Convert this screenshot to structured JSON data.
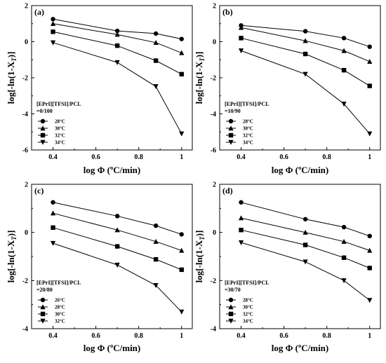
{
  "chart_data": [
    {
      "type": "line",
      "panel_label": "(a)",
      "xlabel": "log Φ (ºC/min)",
      "ylabel": "log[-ln(1-X_T)]",
      "xlim": [
        0.3,
        1.05
      ],
      "ylim": [
        -6,
        2
      ],
      "x_ticks": [
        0.4,
        0.6,
        0.8,
        1.0
      ],
      "x_tick_labels": [
        "0.4",
        "0.6",
        "0.8",
        "1"
      ],
      "y_ticks": [
        -6,
        -4,
        -2,
        0,
        2
      ],
      "y_tick_labels": [
        "-6",
        "-4",
        "-2",
        "0",
        "2"
      ],
      "legend_title_lines": [
        "[EPrI][TFSI]/PCL",
        "=0/100"
      ],
      "legend_placement": "lower-left",
      "series": [
        {
          "name": "28°C",
          "marker": "circle",
          "x": [
            0.4,
            0.7,
            0.88,
            1.0
          ],
          "y": [
            1.25,
            0.6,
            0.45,
            0.15
          ]
        },
        {
          "name": "30°C",
          "marker": "triangle-up",
          "x": [
            0.4,
            0.7,
            0.88,
            1.0
          ],
          "y": [
            1.0,
            0.4,
            -0.05,
            -0.62
          ]
        },
        {
          "name": "32°C",
          "marker": "square",
          "x": [
            0.4,
            0.7,
            0.88,
            1.0
          ],
          "y": [
            0.55,
            -0.22,
            -1.05,
            -1.8
          ]
        },
        {
          "name": "34°C",
          "marker": "triangle-down",
          "x": [
            0.4,
            0.7,
            0.88,
            1.0
          ],
          "y": [
            -0.05,
            -1.15,
            -2.48,
            -5.1
          ]
        }
      ]
    },
    {
      "type": "line",
      "panel_label": "(b)",
      "xlabel": "log Φ (ºC/min)",
      "ylabel": "log[-ln(1-X_T)]",
      "xlim": [
        0.3,
        1.05
      ],
      "ylim": [
        -6,
        2
      ],
      "x_ticks": [
        0.4,
        0.6,
        0.8,
        1.0
      ],
      "x_tick_labels": [
        "0.4",
        "0.6",
        "0.8",
        "1"
      ],
      "y_ticks": [
        -6,
        -4,
        -2,
        0,
        2
      ],
      "y_tick_labels": [
        "-6",
        "-4",
        "-2",
        "0",
        "2"
      ],
      "legend_title_lines": [
        "[EPrI][TFSI]/PCL",
        "=10/90"
      ],
      "legend_placement": "lower-left",
      "series": [
        {
          "name": "28°C",
          "marker": "circle",
          "x": [
            0.4,
            0.7,
            0.88,
            1.0
          ],
          "y": [
            0.9,
            0.58,
            0.2,
            -0.28
          ]
        },
        {
          "name": "30°C",
          "marker": "triangle-up",
          "x": [
            0.4,
            0.7,
            0.88,
            1.0
          ],
          "y": [
            0.78,
            0.05,
            -0.5,
            -1.1
          ]
        },
        {
          "name": "32°C",
          "marker": "square",
          "x": [
            0.4,
            0.7,
            0.88,
            1.0
          ],
          "y": [
            0.2,
            -0.68,
            -1.58,
            -2.45
          ]
        },
        {
          "name": "34°C",
          "marker": "triangle-down",
          "x": [
            0.4,
            0.7,
            0.88,
            1.0
          ],
          "y": [
            -0.5,
            -1.8,
            -3.45,
            -5.1
          ]
        }
      ]
    },
    {
      "type": "line",
      "panel_label": "(c)",
      "xlabel": "log Φ (ºC/min)",
      "ylabel": "log[-ln(1-X_T)]",
      "xlim": [
        0.3,
        1.05
      ],
      "ylim": [
        -4,
        2
      ],
      "x_ticks": [
        0.4,
        0.6,
        0.8,
        1.0
      ],
      "x_tick_labels": [
        "0.4",
        "0.6",
        "0.8",
        "1"
      ],
      "y_ticks": [
        -4,
        -2,
        0,
        2
      ],
      "y_tick_labels": [
        "-4",
        "-2",
        "0",
        "2"
      ],
      "legend_title_lines": [
        "[EPrI][TFSI]/PCL",
        "=20/80"
      ],
      "legend_placement": "lower-left",
      "series": [
        {
          "name": "26°C",
          "marker": "circle",
          "x": [
            0.4,
            0.7,
            0.88,
            1.0
          ],
          "y": [
            1.25,
            0.68,
            0.28,
            -0.08
          ]
        },
        {
          "name": "28°C",
          "marker": "triangle-up",
          "x": [
            0.4,
            0.7,
            0.88,
            1.0
          ],
          "y": [
            0.8,
            0.1,
            -0.38,
            -0.75
          ]
        },
        {
          "name": "30°C",
          "marker": "square",
          "x": [
            0.4,
            0.7,
            0.88,
            1.0
          ],
          "y": [
            0.2,
            -0.58,
            -1.12,
            -1.55
          ]
        },
        {
          "name": "32°C",
          "marker": "triangle-down",
          "x": [
            0.4,
            0.7,
            0.88,
            1.0
          ],
          "y": [
            -0.45,
            -1.35,
            -2.2,
            -3.3
          ]
        }
      ]
    },
    {
      "type": "line",
      "panel_label": "(d)",
      "xlabel": "log Φ (ºC/min)",
      "ylabel": "log[-ln(1-X_T)]",
      "xlim": [
        0.3,
        1.05
      ],
      "ylim": [
        -4,
        2
      ],
      "x_ticks": [
        0.4,
        0.6,
        0.8,
        1.0
      ],
      "x_tick_labels": [
        "0.4",
        "0.6",
        "0.8",
        "1"
      ],
      "y_ticks": [
        -4,
        -2,
        0,
        2
      ],
      "y_tick_labels": [
        "-4",
        "-2",
        "0",
        "2"
      ],
      "legend_title_lines": [
        "[EPrI][TFSI]/PCL",
        "=30/70"
      ],
      "legend_placement": "lower-left",
      "series": [
        {
          "name": "28°C",
          "marker": "circle",
          "x": [
            0.4,
            0.7,
            0.88,
            1.0
          ],
          "y": [
            1.25,
            0.55,
            0.22,
            -0.15
          ]
        },
        {
          "name": "30°C",
          "marker": "triangle-up",
          "x": [
            0.4,
            0.7,
            0.88,
            1.0
          ],
          "y": [
            0.6,
            0.0,
            -0.38,
            -0.75
          ]
        },
        {
          "name": "32°C",
          "marker": "square",
          "x": [
            0.4,
            0.7,
            0.88,
            1.0
          ],
          "y": [
            0.1,
            -0.52,
            -1.05,
            -1.48
          ]
        },
        {
          "name": "34°C",
          "marker": "triangle-down",
          "x": [
            0.4,
            0.7,
            0.88,
            1.0
          ],
          "y": [
            -0.42,
            -1.22,
            -2.0,
            -2.82
          ]
        }
      ]
    }
  ]
}
